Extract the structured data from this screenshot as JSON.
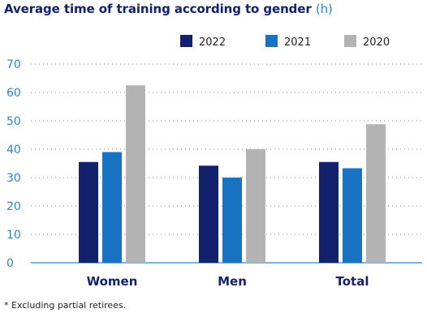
{
  "colors": {
    "series_2022": "#13206b",
    "series_2021": "#1874c2",
    "series_2020": "#b3b3b3",
    "title": "#13206b",
    "title_unit": "#2f86c8",
    "axis_text": "#2f86c8",
    "category_text": "#13206b",
    "grid": "#8a8a8a",
    "axis_line": "#2f86c8"
  },
  "chart_data": {
    "type": "bar",
    "title": "Average time of training according to gender",
    "title_unit": "(h)",
    "xlabel": "",
    "ylabel": "",
    "categories": [
      "Women",
      "Men",
      "Total"
    ],
    "series": [
      {
        "name": "2022",
        "values": [
          35.5,
          34.2,
          35.5
        ]
      },
      {
        "name": "2021",
        "values": [
          39.0,
          30.0,
          33.3
        ]
      },
      {
        "name": "2020",
        "values": [
          62.5,
          40.0,
          48.8
        ]
      }
    ],
    "ylim": [
      0,
      70
    ],
    "yticks": [
      0,
      10,
      20,
      30,
      40,
      50,
      60,
      70
    ],
    "grid": "horizontal dotted",
    "legend_position": "top-right"
  },
  "footnote": "* Excluding partial retirees."
}
